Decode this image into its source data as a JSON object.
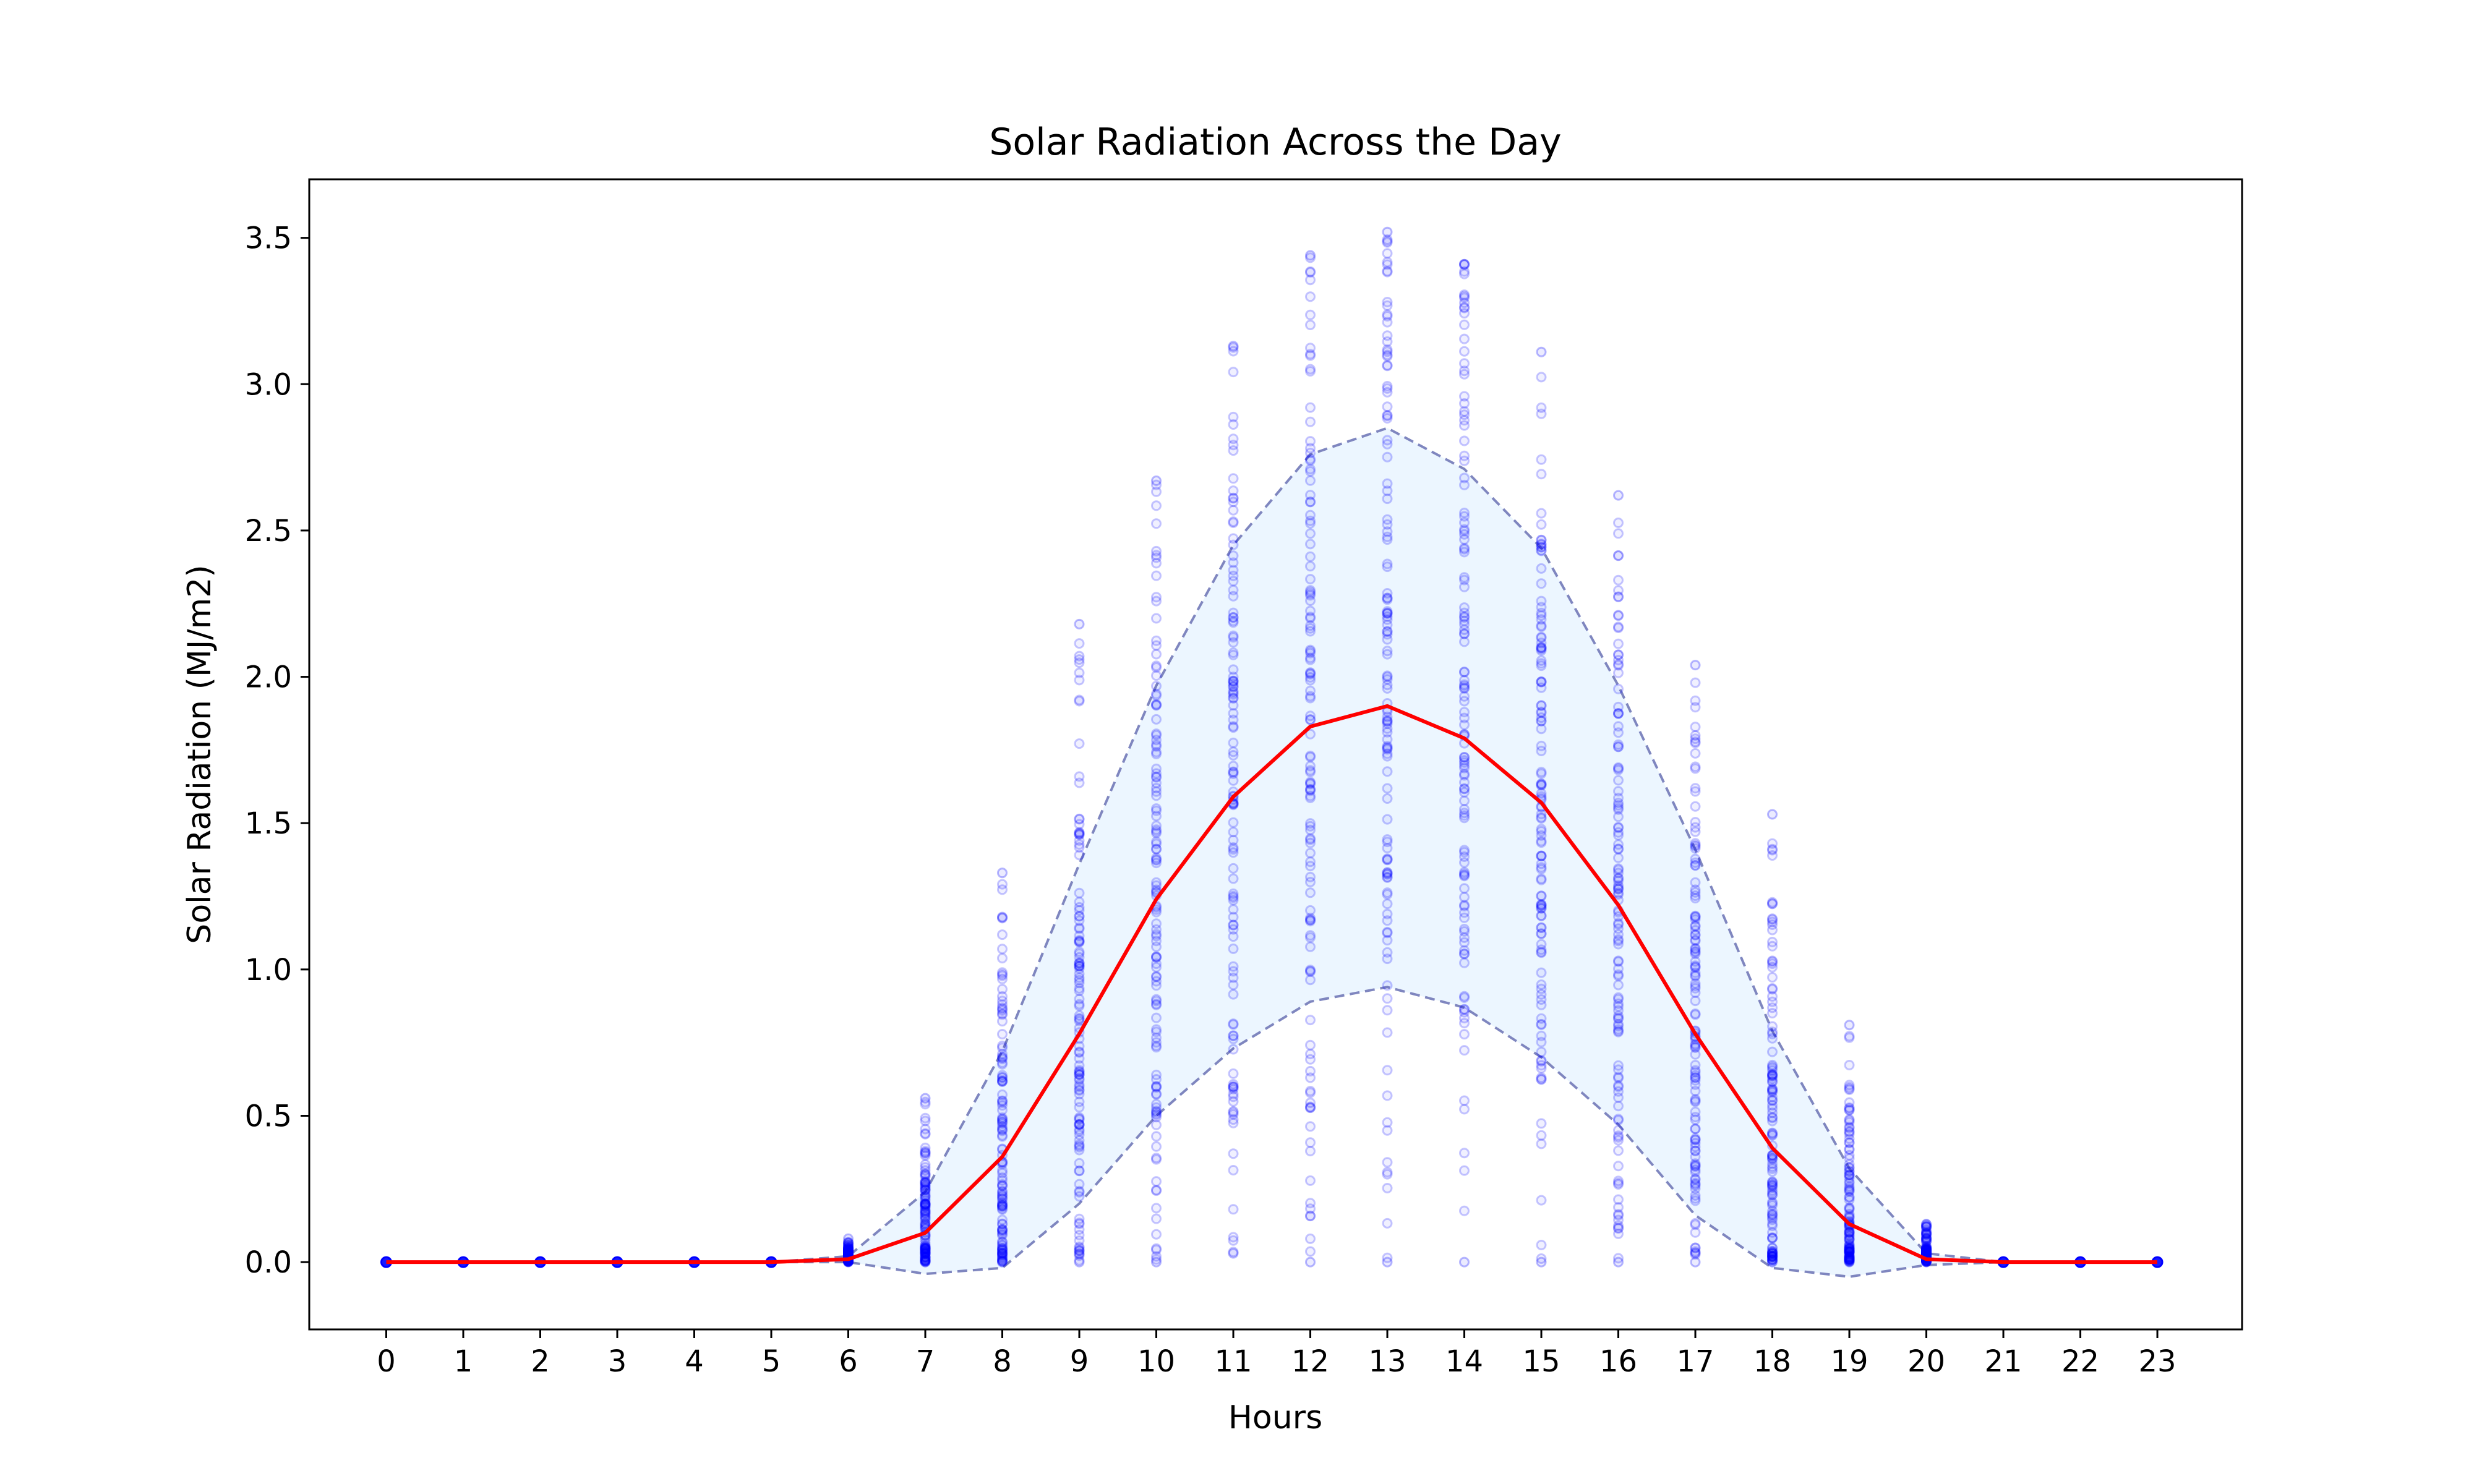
{
  "chart_data": {
    "type": "scatter",
    "title": "Solar Radiation Across the Day",
    "xlabel": "Hours",
    "ylabel": "Solar Radiation (MJ/m2)",
    "xlim": [
      -1.0,
      24.1
    ],
    "ylim": [
      -0.23,
      3.7
    ],
    "x_ticks": [
      0,
      1,
      2,
      3,
      4,
      5,
      6,
      7,
      8,
      9,
      10,
      11,
      12,
      13,
      14,
      15,
      16,
      17,
      18,
      19,
      20,
      21,
      22,
      23
    ],
    "y_ticks": [
      0.0,
      0.5,
      1.0,
      1.5,
      2.0,
      2.5,
      3.0,
      3.5
    ],
    "y_tick_labels": [
      "0.0",
      "0.5",
      "1.0",
      "1.5",
      "2.0",
      "2.5",
      "3.0",
      "3.5"
    ],
    "grid": false,
    "colors": {
      "scatter": "#0000ff",
      "mean_line": "#ff0000",
      "band_fill": "#ddeeff",
      "band_edge": "#7f86bf"
    },
    "hours": [
      0,
      1,
      2,
      3,
      4,
      5,
      6,
      7,
      8,
      9,
      10,
      11,
      12,
      13,
      14,
      15,
      16,
      17,
      18,
      19,
      20,
      21,
      22,
      23
    ],
    "mean": [
      0.0,
      0.0,
      0.0,
      0.0,
      0.0,
      0.0,
      0.01,
      0.1,
      0.36,
      0.78,
      1.24,
      1.59,
      1.83,
      1.9,
      1.79,
      1.57,
      1.22,
      0.78,
      0.39,
      0.13,
      0.01,
      0.0,
      0.0,
      0.0
    ],
    "upper_band": [
      0.0,
      0.0,
      0.0,
      0.0,
      0.0,
      0.0,
      0.02,
      0.24,
      0.72,
      1.36,
      1.97,
      2.45,
      2.76,
      2.85,
      2.71,
      2.44,
      1.97,
      1.41,
      0.79,
      0.32,
      0.03,
      0.0,
      0.0,
      0.0
    ],
    "lower_band": [
      0.0,
      0.0,
      0.0,
      0.0,
      0.0,
      0.0,
      0.0,
      -0.04,
      -0.02,
      0.2,
      0.5,
      0.73,
      0.89,
      0.94,
      0.87,
      0.7,
      0.47,
      0.16,
      -0.02,
      -0.05,
      -0.01,
      0.0,
      0.0,
      0.0
    ],
    "scatter_ranges": [
      {
        "hour": 0,
        "min": 0.0,
        "max": 0.0
      },
      {
        "hour": 1,
        "min": 0.0,
        "max": 0.0
      },
      {
        "hour": 2,
        "min": 0.0,
        "max": 0.0
      },
      {
        "hour": 3,
        "min": 0.0,
        "max": 0.0
      },
      {
        "hour": 4,
        "min": 0.0,
        "max": 0.0
      },
      {
        "hour": 5,
        "min": 0.0,
        "max": 0.0
      },
      {
        "hour": 6,
        "min": 0.0,
        "max": 0.08
      },
      {
        "hour": 7,
        "min": 0.0,
        "max": 0.56
      },
      {
        "hour": 8,
        "min": 0.0,
        "max": 1.33
      },
      {
        "hour": 9,
        "min": 0.0,
        "max": 2.18
      },
      {
        "hour": 10,
        "min": 0.0,
        "max": 2.67
      },
      {
        "hour": 11,
        "min": 0.03,
        "max": 3.13
      },
      {
        "hour": 12,
        "min": 0.0,
        "max": 3.44
      },
      {
        "hour": 13,
        "min": 0.0,
        "max": 3.52
      },
      {
        "hour": 14,
        "min": 0.0,
        "max": 3.41
      },
      {
        "hour": 15,
        "min": 0.0,
        "max": 3.11
      },
      {
        "hour": 16,
        "min": 0.0,
        "max": 2.62
      },
      {
        "hour": 17,
        "min": 0.0,
        "max": 2.04
      },
      {
        "hour": 18,
        "min": 0.0,
        "max": 1.53
      },
      {
        "hour": 19,
        "min": 0.0,
        "max": 0.81
      },
      {
        "hour": 20,
        "min": 0.0,
        "max": 0.13
      },
      {
        "hour": 21,
        "min": 0.0,
        "max": 0.0
      },
      {
        "hour": 22,
        "min": 0.0,
        "max": 0.0
      },
      {
        "hour": 23,
        "min": 0.0,
        "max": 0.0
      }
    ]
  }
}
